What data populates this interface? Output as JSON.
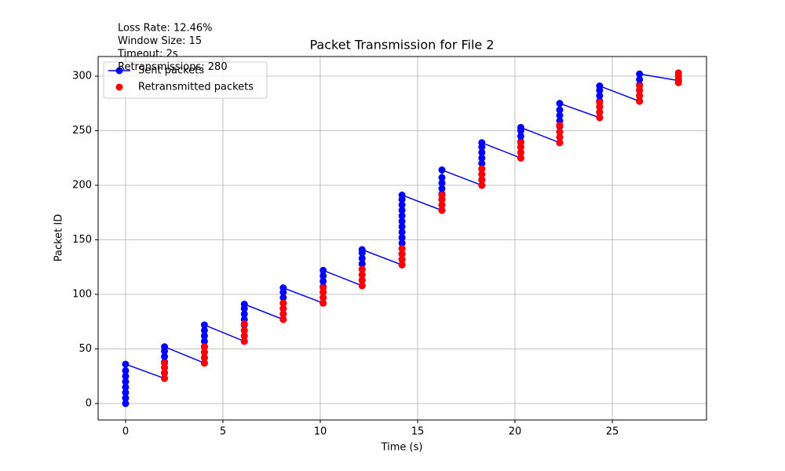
{
  "chart_data": {
    "type": "line",
    "title": "Packet Transmission for File 2",
    "xlabel": "Time (s)",
    "ylabel": "Packet ID",
    "annotations": [
      "Loss Rate: 12.46%",
      "Window Size: 15",
      "Timeout: 2s",
      "Retransmissions: 280"
    ],
    "xlim": [
      -1.41,
      29.84
    ],
    "ylim": [
      -15.1,
      318
    ],
    "xticks": [
      0,
      5,
      10,
      15,
      20,
      25
    ],
    "yticks": [
      0,
      50,
      100,
      150,
      200,
      250,
      300
    ],
    "grid": true,
    "legend": "upper left",
    "series": [
      {
        "name": "Sent packets",
        "color": "#0000ff",
        "type": "line",
        "x": [
          0,
          0,
          0,
          0,
          0,
          0,
          0,
          0,
          2,
          2,
          2,
          2,
          2,
          2,
          2,
          4.05,
          4.05,
          4.05,
          4.05,
          4.05,
          4.05,
          4.05,
          4.05,
          6.1,
          6.1,
          6.1,
          6.1,
          6.1,
          6.1,
          6.1,
          6.1,
          8.1,
          8.1,
          8.1,
          8.1,
          8.1,
          8.1,
          8.1,
          10.15,
          10.15,
          10.15,
          10.15,
          10.15,
          10.15,
          10.15,
          12.15,
          12.15,
          12.15,
          12.15,
          12.15,
          12.15,
          12.15,
          12.15,
          14.2,
          14.2,
          14.2,
          14.2,
          14.2,
          14.2,
          14.2,
          14.2,
          14.2,
          14.2,
          14.2,
          14.2,
          14.2,
          14.2,
          16.25,
          16.25,
          16.25,
          16.25,
          16.25,
          16.25,
          16.25,
          16.25,
          18.3,
          18.3,
          18.3,
          18.3,
          18.3,
          18.3,
          18.3,
          18.3,
          18.3,
          20.3,
          20.3,
          20.3,
          20.3,
          20.3,
          20.3,
          20.3,
          22.3,
          22.3,
          22.3,
          22.3,
          22.3,
          22.3,
          22.3,
          22.3,
          24.35,
          24.35,
          24.35,
          24.35,
          24.35,
          24.35,
          24.35,
          26.4,
          26.4,
          26.4,
          26.4,
          26.4,
          26.4,
          28.4
        ],
        "values": [
          0,
          5,
          10,
          15,
          20,
          25,
          30,
          36,
          23,
          28,
          33,
          38,
          43,
          48,
          52,
          37,
          42,
          47,
          52,
          57,
          62,
          67,
          72,
          57,
          62,
          67,
          72,
          77,
          82,
          87,
          91,
          77,
          82,
          87,
          92,
          97,
          102,
          106,
          92,
          97,
          102,
          107,
          112,
          117,
          122,
          108,
          113,
          118,
          123,
          128,
          133,
          138,
          141,
          127,
          132,
          137,
          142,
          147,
          152,
          157,
          162,
          167,
          172,
          177,
          182,
          187,
          191,
          177,
          182,
          187,
          192,
          197,
          202,
          207,
          214,
          200,
          205,
          210,
          215,
          220,
          225,
          230,
          235,
          239,
          225,
          230,
          235,
          240,
          245,
          250,
          253,
          239,
          244,
          249,
          254,
          259,
          264,
          269,
          275,
          262,
          267,
          272,
          277,
          282,
          287,
          291,
          277,
          282,
          287,
          292,
          297,
          302,
          296
        ]
      },
      {
        "name": "Retransmitted packets",
        "color": "#ff0000",
        "type": "scatter",
        "x": [
          2,
          2,
          2,
          2,
          4.05,
          4.05,
          4.05,
          4.05,
          6.1,
          6.1,
          6.1,
          6.1,
          8.1,
          8.1,
          8.1,
          8.1,
          10.15,
          10.15,
          10.15,
          10.15,
          12.15,
          12.15,
          12.15,
          12.15,
          14.2,
          14.2,
          14.2,
          14.2,
          16.25,
          16.25,
          16.25,
          16.25,
          18.3,
          18.3,
          18.3,
          18.3,
          20.3,
          20.3,
          20.3,
          20.3,
          22.3,
          22.3,
          22.3,
          22.3,
          24.35,
          24.35,
          24.35,
          24.35,
          26.4,
          26.4,
          26.4,
          26.4,
          28.4,
          28.4,
          28.4,
          28.4
        ],
        "values": [
          23,
          28,
          33,
          37,
          37,
          42,
          47,
          52,
          57,
          62,
          67,
          73,
          77,
          82,
          87,
          92,
          92,
          97,
          102,
          106,
          108,
          113,
          118,
          123,
          127,
          132,
          137,
          142,
          177,
          182,
          187,
          191,
          200,
          205,
          210,
          215,
          225,
          230,
          235,
          239,
          239,
          244,
          249,
          255,
          262,
          267,
          272,
          276,
          277,
          282,
          287,
          291,
          294,
          297,
          300,
          303
        ]
      }
    ]
  }
}
